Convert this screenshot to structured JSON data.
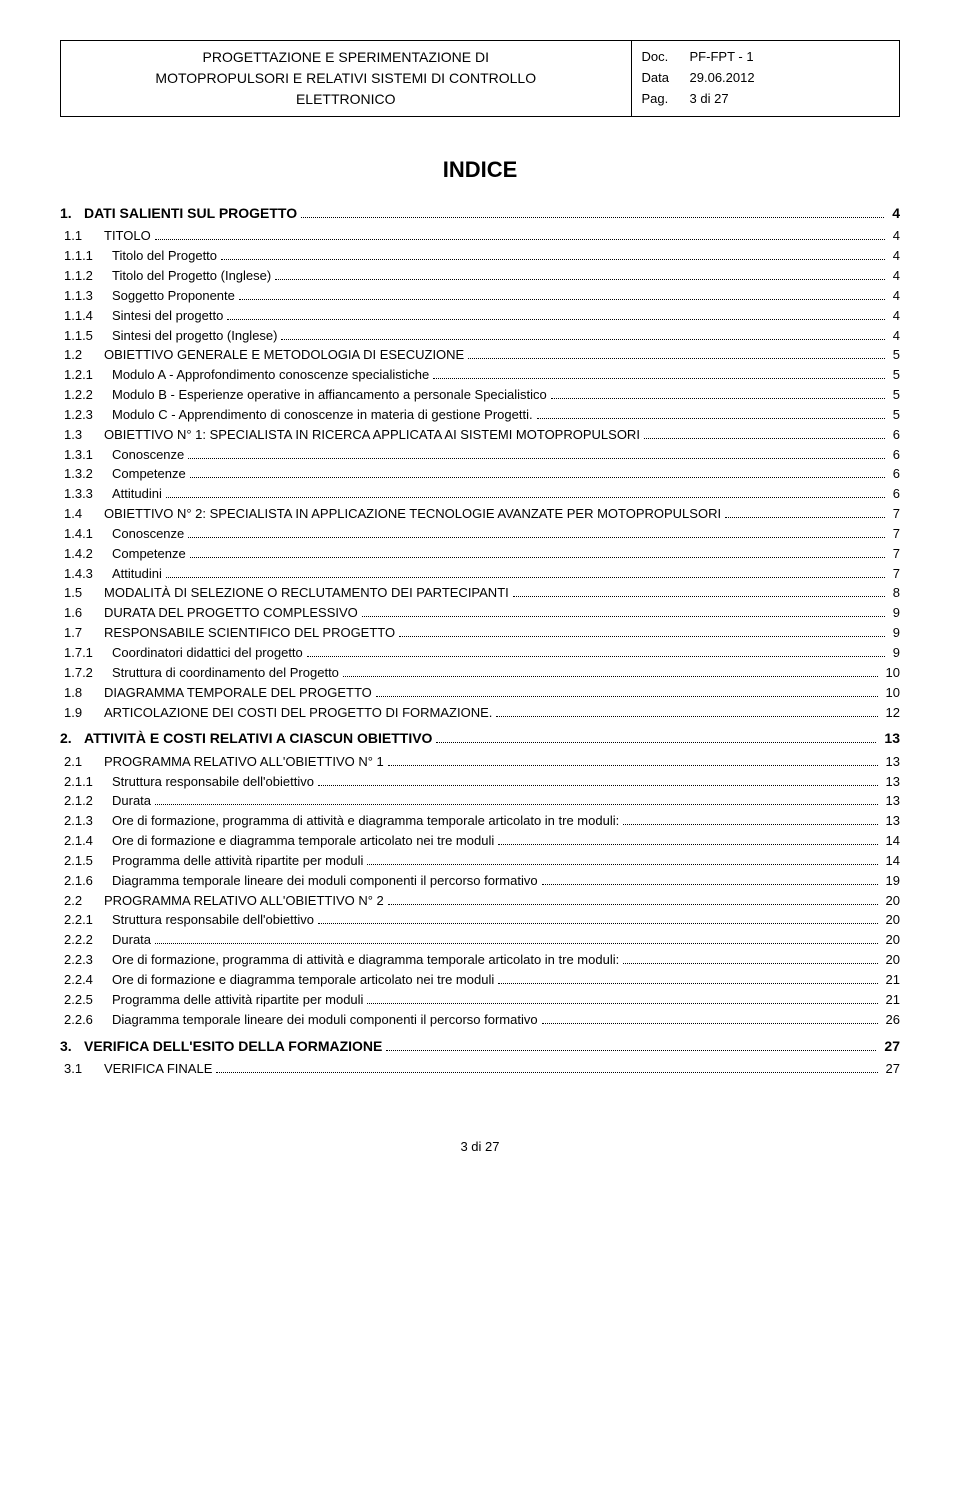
{
  "header": {
    "title_line1": "PROGETTAZIONE E SPERIMENTAZIONE DI",
    "title_line2": "MOTOPROPULSORI E RELATIVI SISTEMI DI CONTROLLO",
    "title_line3": "ELETTRONICO",
    "doc_label": "Doc.",
    "doc_value": "PF-FPT - 1",
    "data_label": "Data",
    "data_value": "29.06.2012",
    "pag_label": "Pag.",
    "pag_value": "3 di 27"
  },
  "indice_title": "INDICE",
  "toc": [
    {
      "level": 1,
      "num": "1.",
      "label": "DATI SALIENTI SUL PROGETTO",
      "page": "4",
      "sc": false
    },
    {
      "level": 2,
      "num": "1.1",
      "label": "TITOLO",
      "page": "4",
      "sc": true
    },
    {
      "level": 3,
      "num": "1.1.1",
      "label": "Titolo del Progetto",
      "page": "4",
      "sc": false
    },
    {
      "level": 3,
      "num": "1.1.2",
      "label": "Titolo del Progetto (Inglese)",
      "page": "4",
      "sc": false
    },
    {
      "level": 3,
      "num": "1.1.3",
      "label": "Soggetto Proponente",
      "page": "4",
      "sc": false
    },
    {
      "level": 3,
      "num": "1.1.4",
      "label": "Sintesi del progetto",
      "page": "4",
      "sc": false
    },
    {
      "level": 3,
      "num": "1.1.5",
      "label": "Sintesi del progetto (Inglese)",
      "page": "4",
      "sc": false
    },
    {
      "level": 2,
      "num": "1.2",
      "label": "OBIETTIVO GENERALE E METODOLOGIA DI ESECUZIONE",
      "page": "5",
      "sc": true
    },
    {
      "level": 3,
      "num": "1.2.1",
      "label": "Modulo A - Approfondimento conoscenze specialistiche",
      "page": "5",
      "sc": false
    },
    {
      "level": 3,
      "num": "1.2.2",
      "label": "Modulo B - Esperienze operative in affiancamento a personale Specialistico",
      "page": "5",
      "sc": false
    },
    {
      "level": 3,
      "num": "1.2.3",
      "label": "Modulo C - Apprendimento di conoscenze in materia di gestione Progetti.",
      "page": "5",
      "sc": false
    },
    {
      "level": 2,
      "num": "1.3",
      "label": "OBIETTIVO N° 1: SPECIALISTA IN RICERCA APPLICATA AI SISTEMI MOTOPROPULSORI",
      "page": "6",
      "sc": true
    },
    {
      "level": 3,
      "num": "1.3.1",
      "label": "Conoscenze",
      "page": "6",
      "sc": false
    },
    {
      "level": 3,
      "num": "1.3.2",
      "label": "Competenze",
      "page": "6",
      "sc": false
    },
    {
      "level": 3,
      "num": "1.3.3",
      "label": "Attitudini",
      "page": "6",
      "sc": false
    },
    {
      "level": 2,
      "num": "1.4",
      "label": "OBIETTIVO N° 2: SPECIALISTA IN APPLICAZIONE TECNOLOGIE AVANZATE PER MOTOPROPULSORI",
      "page": "7",
      "sc": true
    },
    {
      "level": 3,
      "num": "1.4.1",
      "label": "Conoscenze",
      "page": "7",
      "sc": false
    },
    {
      "level": 3,
      "num": "1.4.2",
      "label": "Competenze",
      "page": "7",
      "sc": false
    },
    {
      "level": 3,
      "num": "1.4.3",
      "label": "Attitudini",
      "page": "7",
      "sc": false
    },
    {
      "level": 2,
      "num": "1.5",
      "label": "MODALITÀ DI SELEZIONE O RECLUTAMENTO DEI PARTECIPANTI",
      "page": "8",
      "sc": true
    },
    {
      "level": 2,
      "num": "1.6",
      "label": "DURATA DEL PROGETTO COMPLESSIVO",
      "page": "9",
      "sc": true
    },
    {
      "level": 2,
      "num": "1.7",
      "label": "RESPONSABILE SCIENTIFICO DEL PROGETTO",
      "page": "9",
      "sc": true
    },
    {
      "level": 3,
      "num": "1.7.1",
      "label": "Coordinatori didattici del progetto",
      "page": "9",
      "sc": false
    },
    {
      "level": 3,
      "num": "1.7.2",
      "label": "Struttura di coordinamento del Progetto",
      "page": "10",
      "sc": false
    },
    {
      "level": 2,
      "num": "1.8",
      "label": "DIAGRAMMA TEMPORALE DEL PROGETTO",
      "page": "10",
      "sc": true
    },
    {
      "level": 2,
      "num": "1.9",
      "label": "ARTICOLAZIONE DEI COSTI DEL PROGETTO DI FORMAZIONE.",
      "page": "12",
      "sc": true
    },
    {
      "level": 1,
      "num": "2.",
      "label": "ATTIVITÀ E COSTI RELATIVI A CIASCUN OBIETTIVO",
      "page": "13",
      "sc": false
    },
    {
      "level": 2,
      "num": "2.1",
      "label": "PROGRAMMA RELATIVO ALL'OBIETTIVO N° 1",
      "page": "13",
      "sc": true
    },
    {
      "level": 3,
      "num": "2.1.1",
      "label": "Struttura responsabile dell'obiettivo",
      "page": "13",
      "sc": false
    },
    {
      "level": 3,
      "num": "2.1.2",
      "label": "Durata",
      "page": "13",
      "sc": false
    },
    {
      "level": 3,
      "num": "2.1.3",
      "label": "Ore di formazione, programma di attività e diagramma temporale articolato in tre moduli:",
      "page": "13",
      "sc": false
    },
    {
      "level": 3,
      "num": "2.1.4",
      "label": "Ore di formazione e diagramma temporale articolato nei tre moduli",
      "page": "14",
      "sc": false
    },
    {
      "level": 3,
      "num": "2.1.5",
      "label": "Programma delle attività ripartite per moduli",
      "page": "14",
      "sc": false
    },
    {
      "level": 3,
      "num": "2.1.6",
      "label": "Diagramma temporale lineare dei moduli componenti il percorso formativo",
      "page": "19",
      "sc": false
    },
    {
      "level": 2,
      "num": "2.2",
      "label": "PROGRAMMA RELATIVO ALL'OBIETTIVO N° 2",
      "page": "20",
      "sc": true
    },
    {
      "level": 3,
      "num": "2.2.1",
      "label": "Struttura responsabile dell'obiettivo",
      "page": "20",
      "sc": false
    },
    {
      "level": 3,
      "num": "2.2.2",
      "label": "Durata",
      "page": "20",
      "sc": false
    },
    {
      "level": 3,
      "num": "2.2.3",
      "label": "Ore di formazione, programma di attività e diagramma temporale articolato in tre moduli:",
      "page": "20",
      "sc": false
    },
    {
      "level": 3,
      "num": "2.2.4",
      "label": "Ore di formazione e diagramma temporale articolato nei tre moduli",
      "page": "21",
      "sc": false
    },
    {
      "level": 3,
      "num": "2.2.5",
      "label": "Programma delle attività ripartite per moduli",
      "page": "21",
      "sc": false
    },
    {
      "level": 3,
      "num": "2.2.6",
      "label": "Diagramma temporale lineare dei moduli componenti il percorso formativo",
      "page": "26",
      "sc": false
    },
    {
      "level": 1,
      "num": "3.",
      "label": "VERIFICA DELL'ESITO DELLA FORMAZIONE",
      "page": "27",
      "sc": false
    },
    {
      "level": 2,
      "num": "3.1",
      "label": "VERIFICA FINALE",
      "page": "27",
      "sc": true
    }
  ],
  "footer": "3 di 27"
}
